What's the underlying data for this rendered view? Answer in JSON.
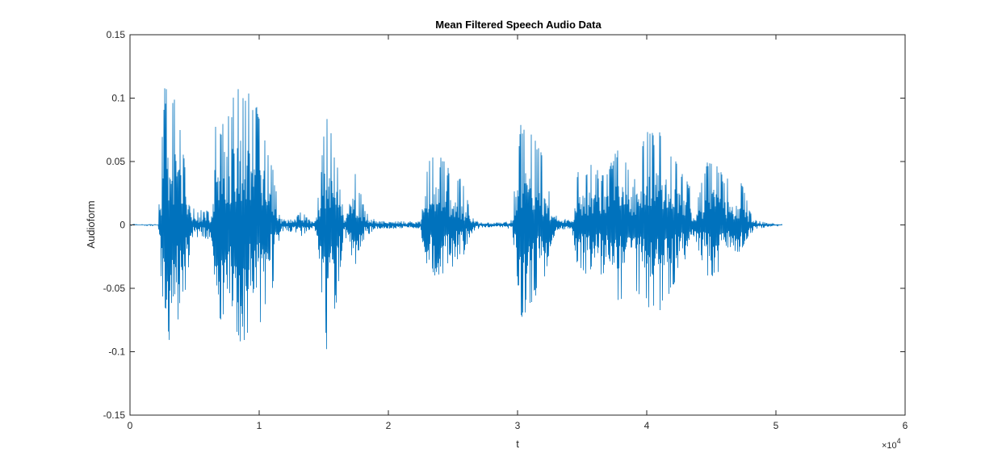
{
  "chart_data": {
    "type": "line",
    "title": "Mean Filtered Speech Audio Data",
    "xlabel": "t",
    "ylabel": "Audioform",
    "xlim": [
      0,
      60000
    ],
    "ylim": [
      -0.15,
      0.15
    ],
    "x_ticks": [
      0,
      10000,
      20000,
      30000,
      40000,
      50000,
      60000
    ],
    "x_tick_labels": [
      "0",
      "1",
      "2",
      "3",
      "4",
      "5",
      "6"
    ],
    "x_multiplier": "×10",
    "x_multiplier_exponent": "4",
    "y_ticks": [
      -0.15,
      -0.1,
      -0.05,
      0,
      0.05,
      0.1,
      0.15
    ],
    "y_tick_labels": [
      "-0.15",
      "-0.1",
      "-0.05",
      "0",
      "0.05",
      "0.1",
      "0.15"
    ],
    "grid": false,
    "line_color": "#0072BD",
    "series": [
      {
        "x_end": 50500,
        "envelope": {
          "t": [
            0,
            2200,
            2400,
            2700,
            3100,
            3300,
            3600,
            4200,
            4800,
            5000,
            6300,
            6600,
            7200,
            8000,
            8600,
            9000,
            9700,
            10500,
            11300,
            11600,
            12000,
            12800,
            13200,
            14000,
            14300,
            14600,
            15000,
            15300,
            15600,
            16000,
            16600,
            17000,
            17200,
            17600,
            18200,
            18400,
            18900,
            19200,
            20000,
            20500,
            22500,
            22700,
            23200,
            23800,
            24400,
            24800,
            25200,
            25800,
            26200,
            26600,
            27200,
            29000,
            29600,
            29900,
            30300,
            30800,
            31500,
            32200,
            32600,
            33000,
            33300,
            33700,
            34200,
            34600,
            35000,
            35600,
            36200,
            36700,
            37200,
            37800,
            38200,
            38600,
            39000,
            39600,
            40300,
            41000,
            41600,
            42200,
            42800,
            43400,
            43700,
            44100,
            44500,
            45000,
            45500,
            46000,
            46400,
            46800,
            47300,
            47800,
            48300,
            48800,
            49500,
            50500
          ],
          "upper": [
            0.0005,
            0.0005,
            0.07,
            0.112,
            0.116,
            0.11,
            0.09,
            0.06,
            0.015,
            0.012,
            0.012,
            0.085,
            0.09,
            0.105,
            0.115,
            0.115,
            0.1,
            0.08,
            0.03,
            0.005,
            0.005,
            0.005,
            0.012,
            0.003,
            0.005,
            0.025,
            0.075,
            0.095,
            0.07,
            0.055,
            0.005,
            0.02,
            0.06,
            0.035,
            0.012,
            0.01,
            0.005,
            0.003,
            0.003,
            0.003,
            0.003,
            0.04,
            0.055,
            0.057,
            0.052,
            0.04,
            0.038,
            0.038,
            0.018,
            0.005,
            0.002,
            0.002,
            0.005,
            0.05,
            0.085,
            0.082,
            0.07,
            0.045,
            0.02,
            0.008,
            0.003,
            0.005,
            0.003,
            0.04,
            0.05,
            0.048,
            0.045,
            0.04,
            0.048,
            0.062,
            0.055,
            0.045,
            0.035,
            0.07,
            0.077,
            0.075,
            0.07,
            0.055,
            0.04,
            0.03,
            0.008,
            0.03,
            0.05,
            0.055,
            0.045,
            0.04,
            0.037,
            0.033,
            0.035,
            0.018,
            0.004,
            0.003,
            0.001,
            0.0005
          ],
          "lower": [
            -0.0005,
            -0.0005,
            -0.04,
            -0.105,
            -0.1,
            -0.095,
            -0.085,
            -0.06,
            -0.012,
            -0.01,
            -0.012,
            -0.07,
            -0.08,
            -0.09,
            -0.095,
            -0.1,
            -0.09,
            -0.075,
            -0.04,
            -0.006,
            -0.005,
            -0.006,
            -0.01,
            -0.003,
            -0.005,
            -0.02,
            -0.075,
            -0.118,
            -0.1,
            -0.06,
            -0.005,
            -0.03,
            -0.045,
            -0.025,
            -0.01,
            -0.008,
            -0.005,
            -0.003,
            -0.003,
            -0.003,
            -0.003,
            -0.035,
            -0.04,
            -0.042,
            -0.038,
            -0.035,
            -0.03,
            -0.025,
            -0.012,
            -0.005,
            -0.002,
            -0.002,
            -0.004,
            -0.04,
            -0.075,
            -0.07,
            -0.06,
            -0.04,
            -0.015,
            -0.006,
            -0.003,
            -0.004,
            -0.003,
            -0.03,
            -0.04,
            -0.04,
            -0.042,
            -0.038,
            -0.045,
            -0.068,
            -0.07,
            -0.07,
            -0.05,
            -0.06,
            -0.07,
            -0.07,
            -0.06,
            -0.045,
            -0.03,
            -0.02,
            -0.008,
            -0.025,
            -0.04,
            -0.045,
            -0.04,
            -0.035,
            -0.03,
            -0.025,
            -0.02,
            -0.012,
            -0.004,
            -0.003,
            -0.001,
            -0.0005
          ],
          "core": [
            0,
            0,
            0.02,
            0.055,
            0.06,
            0.05,
            0.045,
            0.03,
            0.006,
            0.005,
            0.005,
            0.045,
            0.05,
            0.055,
            0.06,
            0.05,
            0.045,
            0.035,
            0.012,
            0.003,
            0.003,
            0.003,
            0.004,
            0.002,
            0.003,
            0.012,
            0.035,
            0.04,
            0.035,
            0.025,
            0.003,
            0.012,
            0.025,
            0.012,
            0.005,
            0.004,
            0.003,
            0.002,
            0.002,
            0.002,
            0.002,
            0.018,
            0.025,
            0.028,
            0.026,
            0.02,
            0.015,
            0.012,
            0.007,
            0.003,
            0.001,
            0.001,
            0.002,
            0.02,
            0.035,
            0.035,
            0.028,
            0.018,
            0.008,
            0.004,
            0.002,
            0.003,
            0.002,
            0.018,
            0.022,
            0.022,
            0.022,
            0.02,
            0.025,
            0.03,
            0.028,
            0.024,
            0.02,
            0.025,
            0.035,
            0.035,
            0.03,
            0.025,
            0.018,
            0.012,
            0.004,
            0.012,
            0.02,
            0.024,
            0.022,
            0.018,
            0.015,
            0.014,
            0.012,
            0.008,
            0.002,
            0.001,
            0.0005,
            0
          ]
        }
      }
    ]
  }
}
